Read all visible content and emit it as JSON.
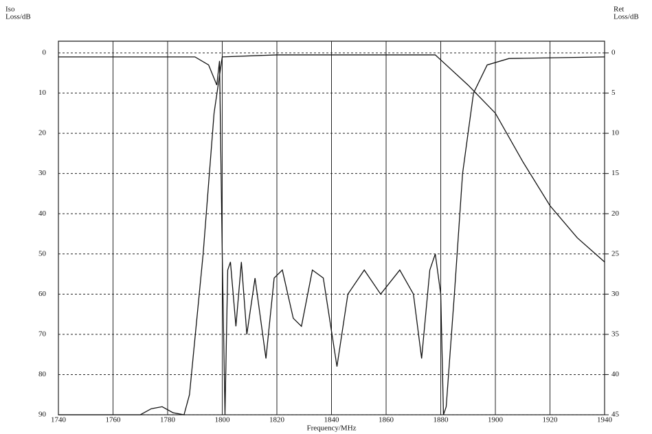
{
  "chart_data": {
    "type": "line",
    "xlabel": "Frequency/MHz",
    "ylabel_lines": [
      "Iso",
      "Loss/dB"
    ],
    "y2label_lines": [
      "Ret",
      "Loss/dB"
    ],
    "xlim": [
      1740,
      1940
    ],
    "xticks": [
      1740,
      1760,
      1780,
      1800,
      1820,
      1840,
      1860,
      1880,
      1900,
      1920,
      1940
    ],
    "ylim": [
      0,
      90
    ],
    "yticks": [
      0,
      10,
      20,
      30,
      40,
      50,
      60,
      70,
      80,
      90
    ],
    "y2lim": [
      0,
      45
    ],
    "y2ticks": [
      0,
      5,
      10,
      15,
      20,
      25,
      30,
      35,
      40,
      45
    ],
    "y_inverted": true,
    "grid": true,
    "series": [
      {
        "color": "#111111",
        "x": [
          1740,
          1770,
          1774,
          1778,
          1782,
          1786,
          1788,
          1793,
          1797,
          1800,
          1820,
          1840,
          1860,
          1878,
          1882,
          1890,
          1900,
          1910,
          1920,
          1930,
          1940
        ],
        "values": [
          90,
          90,
          88.5,
          88,
          89.5,
          90,
          85,
          50,
          15,
          1,
          0.5,
          0.5,
          0.5,
          0.5,
          3,
          8,
          15,
          27,
          38,
          46,
          52
        ]
      },
      {
        "color": "#111111",
        "axis": "y2",
        "x": [
          1740,
          1790,
          1795,
          1798,
          1799,
          1800,
          1801,
          1802,
          1803,
          1805,
          1807,
          1809,
          1812,
          1816,
          1819,
          1822,
          1826,
          1829,
          1833,
          1837,
          1842,
          1846,
          1852,
          1858,
          1865,
          1870,
          1873,
          1876,
          1878,
          1880,
          1881,
          1882,
          1885,
          1888,
          1892,
          1897,
          1905,
          1940
        ],
        "values": [
          0.5,
          0.5,
          1.5,
          4,
          1,
          25,
          45,
          27,
          26,
          34,
          26,
          35,
          28,
          38,
          28,
          27,
          33,
          34,
          27,
          28,
          39,
          30,
          27,
          30,
          27,
          30,
          38,
          27,
          25,
          30,
          45,
          44,
          30,
          15,
          5,
          1.5,
          0.7,
          0.5
        ]
      }
    ]
  }
}
